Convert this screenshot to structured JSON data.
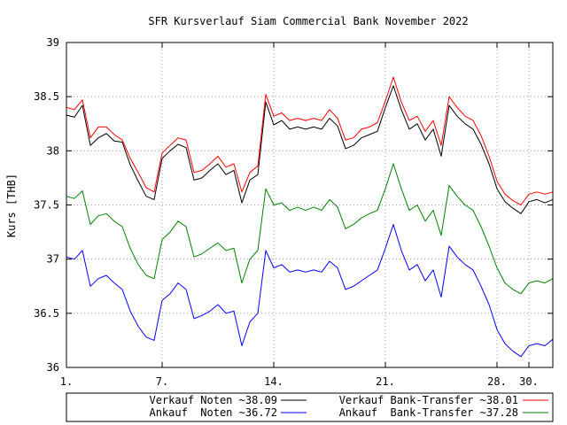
{
  "chart_data": {
    "type": "line",
    "title": "SFR Kursverlauf Siam Commercial Bank November 2022",
    "xlabel": "",
    "ylabel": "Kurs [THB]",
    "xlim": [
      1,
      31.5
    ],
    "ylim": [
      36,
      39
    ],
    "x_ticks": [
      {
        "value": 1,
        "label": "1."
      },
      {
        "value": 7,
        "label": "7."
      },
      {
        "value": 14,
        "label": "14."
      },
      {
        "value": 21,
        "label": "21."
      },
      {
        "value": 28,
        "label": "28."
      },
      {
        "value": 30,
        "label": "30."
      }
    ],
    "y_ticks": [
      {
        "value": 36,
        "label": "36"
      },
      {
        "value": 36.5,
        "label": "36.5"
      },
      {
        "value": 37,
        "label": "37"
      },
      {
        "value": 37.5,
        "label": "37.5"
      },
      {
        "value": 38,
        "label": "38"
      },
      {
        "value": 38.5,
        "label": "38.5"
      },
      {
        "value": 39,
        "label": "39"
      }
    ],
    "grid": true,
    "legend_position": "bottom",
    "x": [
      1,
      1.5,
      2,
      2.5,
      3,
      3.5,
      4,
      4.5,
      5,
      5.5,
      6,
      6.5,
      7,
      7.5,
      8,
      8.5,
      9,
      9.5,
      10,
      10.5,
      11,
      11.5,
      12,
      12.5,
      13,
      13.5,
      14,
      14.5,
      15,
      15.5,
      16,
      16.5,
      17,
      17.5,
      18,
      18.5,
      19,
      19.5,
      20,
      20.5,
      21,
      21.5,
      22,
      22.5,
      23,
      23.5,
      24,
      24.5,
      25,
      25.5,
      26,
      26.5,
      27,
      27.5,
      28,
      28.5,
      29,
      29.5,
      30,
      30.5,
      31,
      31.5
    ],
    "series": [
      {
        "name": "Verkauf Noten",
        "value_label": "~38.09",
        "color": "#000000",
        "values": [
          38.33,
          38.31,
          38.42,
          38.05,
          38.12,
          38.16,
          38.09,
          38.08,
          37.87,
          37.72,
          37.58,
          37.55,
          37.93,
          38.0,
          38.06,
          38.03,
          37.73,
          37.75,
          37.82,
          37.88,
          37.78,
          37.82,
          37.52,
          37.73,
          37.78,
          38.45,
          38.24,
          38.28,
          38.2,
          38.22,
          38.2,
          38.22,
          38.2,
          38.3,
          38.23,
          38.02,
          38.05,
          38.12,
          38.15,
          38.18,
          38.4,
          38.6,
          38.38,
          38.2,
          38.25,
          38.1,
          38.2,
          37.95,
          38.42,
          38.32,
          38.25,
          38.2,
          38.06,
          37.88,
          37.65,
          37.53,
          37.47,
          37.42,
          37.53,
          37.55,
          37.52,
          37.55
        ]
      },
      {
        "name": "Verkauf Bank-Transfer",
        "value_label": "~38.01",
        "color": "#ff0000",
        "values": [
          38.4,
          38.38,
          38.47,
          38.12,
          38.22,
          38.22,
          38.15,
          38.1,
          37.93,
          37.8,
          37.66,
          37.62,
          37.98,
          38.05,
          38.12,
          38.1,
          37.8,
          37.82,
          37.88,
          37.95,
          37.85,
          37.88,
          37.62,
          37.8,
          37.86,
          38.52,
          38.32,
          38.35,
          38.28,
          38.3,
          38.28,
          38.3,
          38.28,
          38.38,
          38.3,
          38.1,
          38.12,
          38.2,
          38.22,
          38.26,
          38.46,
          38.68,
          38.45,
          38.28,
          38.32,
          38.18,
          38.28,
          38.05,
          38.5,
          38.4,
          38.32,
          38.28,
          38.14,
          37.95,
          37.72,
          37.6,
          37.54,
          37.5,
          37.6,
          37.62,
          37.6,
          37.62
        ]
      },
      {
        "name": "Ankauf  Noten",
        "value_label": "~36.72",
        "color": "#0000ff",
        "values": [
          37.02,
          37.0,
          37.08,
          36.75,
          36.82,
          36.85,
          36.78,
          36.72,
          36.52,
          36.38,
          36.28,
          36.25,
          36.62,
          36.68,
          36.78,
          36.72,
          36.45,
          36.48,
          36.52,
          36.58,
          36.5,
          36.52,
          36.2,
          36.42,
          36.5,
          37.08,
          36.92,
          36.95,
          36.88,
          36.9,
          36.88,
          36.9,
          36.88,
          36.98,
          36.92,
          36.72,
          36.75,
          36.8,
          36.85,
          36.9,
          37.1,
          37.32,
          37.08,
          36.9,
          36.95,
          36.8,
          36.9,
          36.65,
          37.12,
          37.02,
          36.95,
          36.9,
          36.75,
          36.58,
          36.35,
          36.22,
          36.15,
          36.1,
          36.2,
          36.22,
          36.2,
          36.26
        ]
      },
      {
        "name": "Ankauf  Bank-Transfer",
        "value_label": "~37.28",
        "color": "#008000",
        "values": [
          37.58,
          37.56,
          37.63,
          37.32,
          37.4,
          37.42,
          37.35,
          37.3,
          37.1,
          36.95,
          36.85,
          36.82,
          37.18,
          37.25,
          37.35,
          37.3,
          37.02,
          37.05,
          37.1,
          37.15,
          37.08,
          37.1,
          36.78,
          37.0,
          37.08,
          37.65,
          37.5,
          37.52,
          37.45,
          37.48,
          37.45,
          37.48,
          37.45,
          37.55,
          37.48,
          37.28,
          37.32,
          37.38,
          37.42,
          37.45,
          37.65,
          37.88,
          37.65,
          37.45,
          37.5,
          37.35,
          37.45,
          37.22,
          37.68,
          37.58,
          37.5,
          37.45,
          37.3,
          37.12,
          36.92,
          36.78,
          36.72,
          36.68,
          36.78,
          36.8,
          36.78,
          36.82
        ]
      }
    ]
  }
}
